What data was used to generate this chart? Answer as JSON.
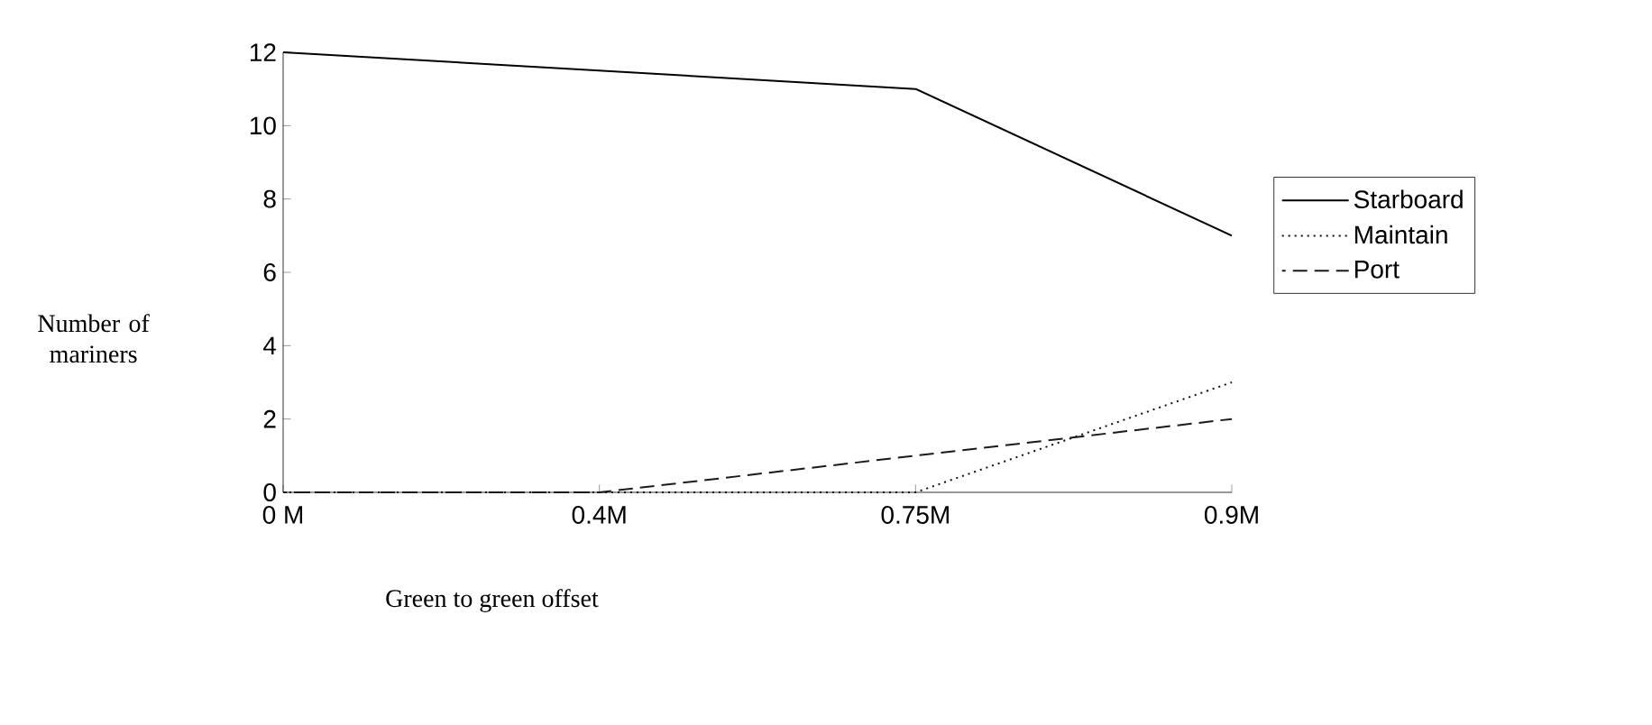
{
  "chart_data": {
    "type": "line",
    "xlabel": "Green to green offset",
    "ylabel": "Number of mariners",
    "categories": [
      "0 M",
      "0.4M",
      "0.75M",
      "0.9M"
    ],
    "series": [
      {
        "name": "Starboard",
        "color": "#000000",
        "line_style": "solid",
        "values": [
          12,
          11.5,
          11,
          7
        ]
      },
      {
        "name": "Maintain",
        "color": "#0d0d0d",
        "line_style": "dotted",
        "values": [
          0,
          0,
          0,
          3
        ]
      },
      {
        "name": "Port",
        "color": "#1a1a1a",
        "line_style": "dashed",
        "values": [
          0,
          0,
          1,
          2
        ]
      }
    ],
    "ylim": [
      0,
      12
    ],
    "yticks": [
      0,
      2,
      4,
      6,
      8,
      10,
      12
    ],
    "grid": false,
    "legend": "right",
    "marker": "none"
  }
}
